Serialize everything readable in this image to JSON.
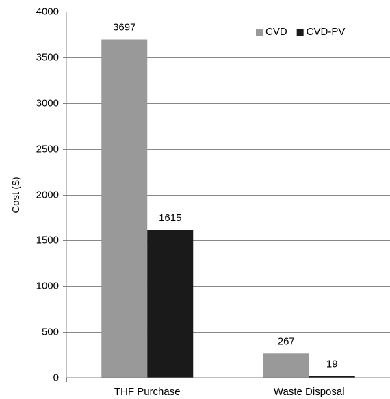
{
  "chart_data": {
    "type": "bar",
    "title": "",
    "xlabel": "",
    "ylabel": "Cost ($)",
    "categories": [
      "THF Purchase",
      "Waste Disposal"
    ],
    "series": [
      {
        "name": "CVD",
        "values": [
          3697,
          267
        ],
        "color": "#999999"
      },
      {
        "name": "CVD-PV",
        "values": [
          1615,
          19
        ],
        "color": "#1a1a1a"
      }
    ],
    "ylim": [
      0,
      4000
    ],
    "yticks": [
      0,
      500,
      1000,
      1500,
      2000,
      2500,
      3000,
      3500,
      4000
    ],
    "grid": true,
    "gridlines": "horizontal",
    "legend_position": "top-right",
    "data_labels": true
  }
}
